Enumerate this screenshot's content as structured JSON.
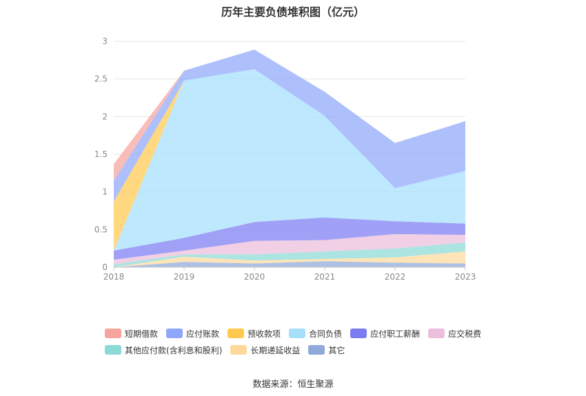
{
  "chart_data": {
    "type": "area",
    "stacked": true,
    "title": "历年主要负债堆积图（亿元）",
    "x": [
      "2018",
      "2019",
      "2020",
      "2021",
      "2022",
      "2023"
    ],
    "ylim": [
      0,
      3
    ],
    "yticks": [
      "0",
      "0.5",
      "1",
      "1.5",
      "2",
      "2.5",
      "3"
    ],
    "grid": true,
    "legend_position": "bottom",
    "series": [
      {
        "name": "其它",
        "color": "#8fa9d9",
        "values": [
          0.0,
          0.07,
          0.05,
          0.08,
          0.06,
          0.05
        ]
      },
      {
        "name": "长期递延收益",
        "color": "#ffd99b",
        "values": [
          0.0,
          0.07,
          0.04,
          0.03,
          0.07,
          0.16
        ]
      },
      {
        "name": "其他应付款(含利息和股利)",
        "color": "#8cd9d6",
        "values": [
          0.04,
          0.03,
          0.08,
          0.1,
          0.12,
          0.12
        ]
      },
      {
        "name": "应交税费",
        "color": "#ebbedd",
        "values": [
          0.06,
          0.05,
          0.18,
          0.15,
          0.19,
          0.1
        ]
      },
      {
        "name": "应付职工薪酬",
        "color": "#7c7cf2",
        "values": [
          0.12,
          0.17,
          0.25,
          0.3,
          0.17,
          0.15
        ]
      },
      {
        "name": "合同负债",
        "color": "#a5dffc",
        "values": [
          0.0,
          2.09,
          2.03,
          1.35,
          0.44,
          0.7
        ]
      },
      {
        "name": "预收款项",
        "color": "#ffc94d",
        "values": [
          0.65,
          0.0,
          0.0,
          0.0,
          0.0,
          0.0
        ]
      },
      {
        "name": "应付账款",
        "color": "#8fa7fb",
        "values": [
          0.28,
          0.13,
          0.26,
          0.32,
          0.6,
          0.66
        ]
      },
      {
        "name": "短期借款",
        "color": "#f7a49e",
        "values": [
          0.22,
          0.0,
          0.0,
          0.0,
          0.0,
          0.0
        ]
      }
    ],
    "legend_order": [
      "短期借款",
      "应付账款",
      "预收款项",
      "合同负债",
      "应付职工薪酬",
      "应交税费",
      "其他应付款(含利息和股利)",
      "长期递延收益",
      "其它"
    ],
    "source": "数据来源：恒生聚源"
  }
}
